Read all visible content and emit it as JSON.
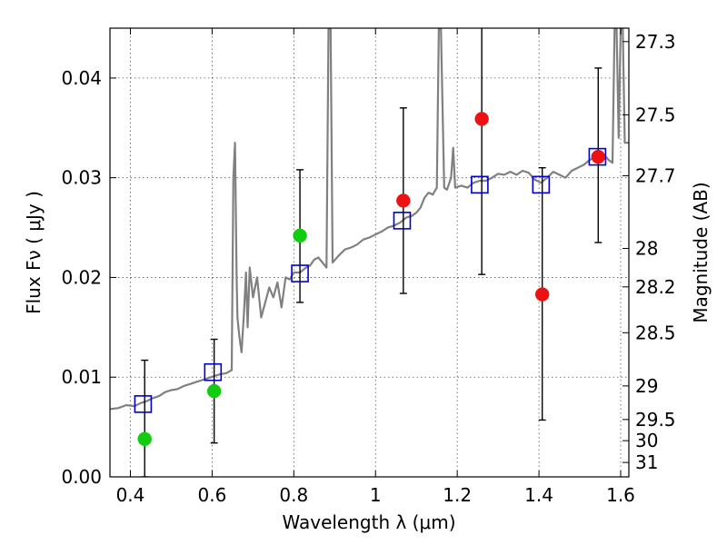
{
  "chart_data": {
    "type": "scatter",
    "xlabel": "Wavelength  λ (μm)",
    "ylabel": "Flux  Fν  ( μJy )",
    "ylabel_right": "Magnitude (AB)",
    "xlim": [
      0.35,
      1.62
    ],
    "ylim": [
      0.0,
      0.045
    ],
    "grid": true,
    "x_ticks": [
      0.4,
      0.6,
      0.8,
      1.0,
      1.2,
      1.4,
      1.6
    ],
    "x_tick_labels": [
      "0.4",
      "0.6",
      "0.8",
      "1",
      "1.2",
      "1.4",
      "1.6"
    ],
    "y_ticks": [
      0.0,
      0.01,
      0.02,
      0.03,
      0.04
    ],
    "y_tick_labels": [
      "0.00",
      "0.01",
      "0.02",
      "0.03",
      "0.04"
    ],
    "mag_ticks": [
      27.3,
      27.5,
      27.7,
      28,
      28.2,
      28.5,
      29,
      29.5,
      30,
      31
    ],
    "mag_tick_labels": [
      "27.3",
      "27.5",
      "27.7",
      "28",
      "28.2",
      "28.5",
      "29",
      "29.5",
      "30",
      "31"
    ],
    "series": [
      {
        "kind": "spectrum",
        "color": "#808080",
        "points": [
          [
            0.35,
            0.0068
          ],
          [
            0.37,
            0.0069
          ],
          [
            0.39,
            0.0072
          ],
          [
            0.41,
            0.0071
          ],
          [
            0.425,
            0.0074
          ],
          [
            0.44,
            0.0076
          ],
          [
            0.455,
            0.0079
          ],
          [
            0.47,
            0.0081
          ],
          [
            0.485,
            0.0085
          ],
          [
            0.5,
            0.0087
          ],
          [
            0.515,
            0.0088
          ],
          [
            0.53,
            0.0091
          ],
          [
            0.545,
            0.0093
          ],
          [
            0.56,
            0.0095
          ],
          [
            0.575,
            0.0097
          ],
          [
            0.59,
            0.0099
          ],
          [
            0.605,
            0.0101
          ],
          [
            0.62,
            0.0103
          ],
          [
            0.635,
            0.0104
          ],
          [
            0.648,
            0.0107
          ],
          [
            0.652,
            0.03
          ],
          [
            0.656,
            0.0335
          ],
          [
            0.66,
            0.02
          ],
          [
            0.662,
            0.016
          ],
          [
            0.667,
            0.014
          ],
          [
            0.672,
            0.0125
          ],
          [
            0.678,
            0.0165
          ],
          [
            0.683,
            0.0205
          ],
          [
            0.687,
            0.015
          ],
          [
            0.692,
            0.021
          ],
          [
            0.7,
            0.018
          ],
          [
            0.71,
            0.02
          ],
          [
            0.72,
            0.016
          ],
          [
            0.73,
            0.0175
          ],
          [
            0.74,
            0.019
          ],
          [
            0.75,
            0.018
          ],
          [
            0.76,
            0.0195
          ],
          [
            0.77,
            0.017
          ],
          [
            0.78,
            0.02
          ],
          [
            0.79,
            0.0198
          ],
          [
            0.8,
            0.0205
          ],
          [
            0.815,
            0.0205
          ],
          [
            0.83,
            0.021
          ],
          [
            0.84,
            0.0212
          ],
          [
            0.85,
            0.0218
          ],
          [
            0.86,
            0.022
          ],
          [
            0.87,
            0.0215
          ],
          [
            0.88,
            0.021
          ],
          [
            0.885,
            0.045
          ],
          [
            0.89,
            0.045
          ],
          [
            0.895,
            0.0215
          ],
          [
            0.91,
            0.0222
          ],
          [
            0.925,
            0.0228
          ],
          [
            0.94,
            0.023
          ],
          [
            0.955,
            0.0233
          ],
          [
            0.97,
            0.0238
          ],
          [
            0.985,
            0.024
          ],
          [
            1.0,
            0.0243
          ],
          [
            1.015,
            0.0246
          ],
          [
            1.03,
            0.025
          ],
          [
            1.045,
            0.0252
          ],
          [
            1.06,
            0.0255
          ],
          [
            1.075,
            0.026
          ],
          [
            1.09,
            0.0262
          ],
          [
            1.1,
            0.0265
          ],
          [
            1.11,
            0.027
          ],
          [
            1.12,
            0.028
          ],
          [
            1.13,
            0.0285
          ],
          [
            1.14,
            0.0283
          ],
          [
            1.15,
            0.029
          ],
          [
            1.155,
            0.045
          ],
          [
            1.16,
            0.045
          ],
          [
            1.168,
            0.029
          ],
          [
            1.175,
            0.0288
          ],
          [
            1.185,
            0.03
          ],
          [
            1.19,
            0.033
          ],
          [
            1.195,
            0.029
          ],
          [
            1.21,
            0.0292
          ],
          [
            1.225,
            0.029
          ],
          [
            1.24,
            0.0295
          ],
          [
            1.255,
            0.0297
          ],
          [
            1.27,
            0.0297
          ],
          [
            1.285,
            0.03
          ],
          [
            1.3,
            0.0304
          ],
          [
            1.315,
            0.0303
          ],
          [
            1.33,
            0.0306
          ],
          [
            1.345,
            0.0303
          ],
          [
            1.36,
            0.0307
          ],
          [
            1.375,
            0.0305
          ],
          [
            1.39,
            0.0298
          ],
          [
            1.405,
            0.0295
          ],
          [
            1.42,
            0.03
          ],
          [
            1.435,
            0.0306
          ],
          [
            1.45,
            0.0303
          ],
          [
            1.465,
            0.03
          ],
          [
            1.48,
            0.0307
          ],
          [
            1.495,
            0.031
          ],
          [
            1.51,
            0.0313
          ],
          [
            1.525,
            0.0318
          ],
          [
            1.54,
            0.0322
          ],
          [
            1.555,
            0.0325
          ],
          [
            1.57,
            0.0318
          ],
          [
            1.58,
            0.0315
          ],
          [
            1.585,
            0.045
          ],
          [
            1.59,
            0.045
          ],
          [
            1.595,
            0.034
          ],
          [
            1.6,
            0.045
          ],
          [
            1.605,
            0.045
          ],
          [
            1.61,
            0.0335
          ],
          [
            1.62,
            0.0335
          ]
        ]
      },
      {
        "kind": "model-squares",
        "color": "#0000cc",
        "x": [
          0.431,
          0.602,
          0.815,
          1.065,
          1.255,
          1.405,
          1.543
        ],
        "y": [
          0.0073,
          0.0105,
          0.0204,
          0.0257,
          0.0293,
          0.0293,
          0.0321
        ]
      },
      {
        "kind": "observed-points",
        "color": "#11cc11",
        "x": [
          0.435,
          0.605,
          0.815
        ],
        "y": [
          0.0038,
          0.0086,
          0.0242
        ]
      },
      {
        "kind": "observed-points",
        "color": "#ee1111",
        "x": [
          1.068,
          1.26,
          1.408,
          1.545
        ],
        "y": [
          0.0277,
          0.0359,
          0.0183,
          0.0321
        ]
      }
    ],
    "error_bars": [
      {
        "x": 0.435,
        "lo": 0.0,
        "hi": 0.0117
      },
      {
        "x": 0.605,
        "lo": 0.0034,
        "hi": 0.0138
      },
      {
        "x": 0.815,
        "lo": 0.0175,
        "hi": 0.0308
      },
      {
        "x": 1.068,
        "lo": 0.0184,
        "hi": 0.037
      },
      {
        "x": 1.26,
        "lo": 0.0203,
        "hi": 0.0465
      },
      {
        "x": 1.408,
        "lo": 0.0057,
        "hi": 0.031
      },
      {
        "x": 1.545,
        "lo": 0.0235,
        "hi": 0.041
      }
    ]
  }
}
